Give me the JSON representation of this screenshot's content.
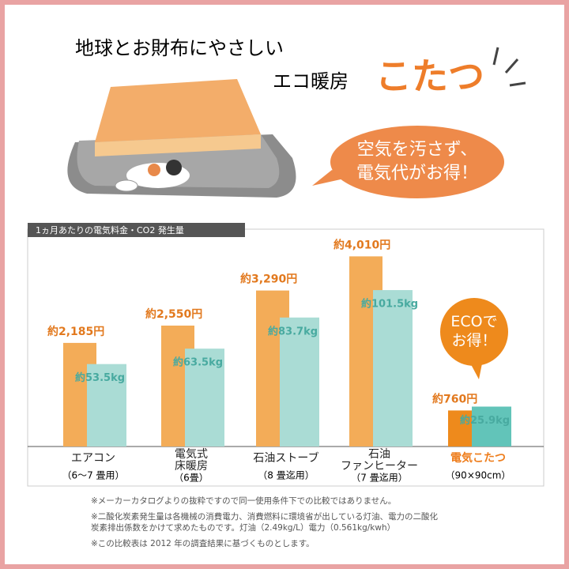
{
  "header": {
    "line1": "地球とお財布にやさしい",
    "line2": "エコ暖房",
    "highlight": "こたつ",
    "bubble": "空気を汚さず、\n電気代がお得！"
  },
  "chart_data": {
    "type": "bar",
    "title": "1ヵ月あたりの電気料金・CO2 発生量",
    "categories": [
      "エアコン",
      "電気式\n床暖房",
      "石油ストーブ",
      "石油\nファンヒーター",
      "電気こたつ"
    ],
    "category_notes": [
      "（6〜7 畳用）",
      "（6畳）",
      "（8 畳迄用）",
      "（7 畳迄用）",
      "（90×90cm）"
    ],
    "series": [
      {
        "colors": [
          "#f3ac58",
          "#f3ac58",
          "#f3ac58",
          "#f3ac58",
          "#ee8a1c"
        ],
        "values": [
          2185,
          2550,
          3290,
          4010,
          760
        ],
        "value_labels": [
          "約2,185円",
          "約2,550円",
          "約3,290円",
          "約4,010円",
          "約760円"
        ]
      },
      {
        "colors": [
          "#aadcd5",
          "#aadcd5",
          "#aadcd5",
          "#aadcd5",
          "#62c4b9"
        ],
        "values": [
          53.5,
          63.5,
          83.7,
          101.5,
          25.9
        ],
        "value_labels": [
          "約53.5kg",
          "約63.5kg",
          "約83.7kg",
          "約101.5kg",
          "約25.9kg"
        ]
      }
    ],
    "callout": "ECOで\nお得！"
  },
  "footnotes": [
    "※メーカーカタログよりの抜粋ですので同一使用条件下での比較ではありません。",
    "※二酸化炭素発生量は各機械の消費電力、消費燃料に環境省が出している灯油、電力の二酸化\n炭素排出係数をかけて求めたものです。灯油（2.49kg/L）電力（0.561kg/kwh）",
    "※この比較表は 2012 年の調査結果に基づくものとします。"
  ]
}
